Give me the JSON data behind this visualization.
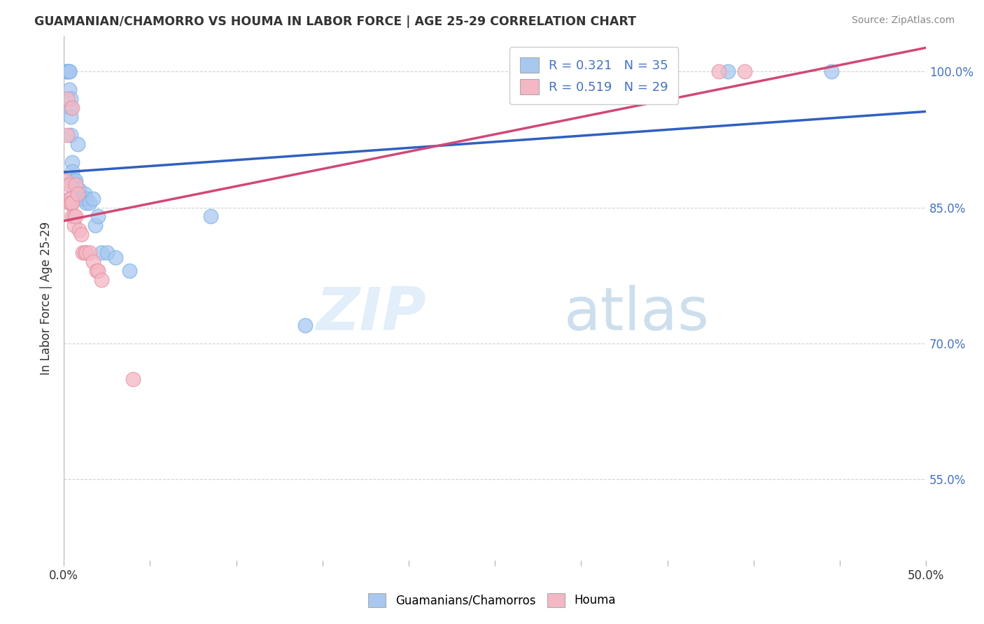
{
  "title": "GUAMANIAN/CHAMORRO VS HOUMA IN LABOR FORCE | AGE 25-29 CORRELATION CHART",
  "source": "Source: ZipAtlas.com",
  "ylabel": "In Labor Force | Age 25-29",
  "xlim": [
    0.0,
    0.5
  ],
  "ylim": [
    0.46,
    1.04
  ],
  "xtick_positions": [
    0.0,
    0.05,
    0.1,
    0.15,
    0.2,
    0.25,
    0.3,
    0.35,
    0.4,
    0.45,
    0.5
  ],
  "xtick_labels_show": {
    "0.0": "0.0%",
    "0.5": "50.0%"
  },
  "yticks": [
    0.55,
    0.7,
    0.85,
    1.0
  ],
  "ytick_labels": [
    "55.0%",
    "70.0%",
    "85.0%",
    "100.0%"
  ],
  "r_blue": 0.321,
  "n_blue": 35,
  "r_pink": 0.519,
  "n_pink": 29,
  "blue_color": "#A8C8F0",
  "blue_edge_color": "#7EB6E8",
  "pink_color": "#F4B8C4",
  "pink_edge_color": "#E896A8",
  "blue_line_color": "#3060C0",
  "pink_line_color": "#D04878",
  "legend_blue_label": "R = 0.321   N = 35",
  "legend_pink_label": "R = 0.519   N = 29",
  "bottom_legend_blue": "Guamanians/Chamorros",
  "bottom_legend_pink": "Houma",
  "blue_x": [
    0.001,
    0.002,
    0.002,
    0.003,
    0.003,
    0.003,
    0.004,
    0.004,
    0.004,
    0.004,
    0.005,
    0.005,
    0.005,
    0.006,
    0.006,
    0.007,
    0.008,
    0.009,
    0.01,
    0.011,
    0.012,
    0.013,
    0.013,
    0.015,
    0.017,
    0.018,
    0.02,
    0.022,
    0.025,
    0.03,
    0.038,
    0.085,
    0.14,
    0.385,
    0.445
  ],
  "blue_y": [
    1.0,
    1.0,
    1.0,
    1.0,
    1.0,
    0.98,
    0.97,
    0.96,
    0.95,
    0.93,
    0.9,
    0.89,
    0.88,
    0.88,
    0.87,
    0.88,
    0.92,
    0.87,
    0.86,
    0.86,
    0.865,
    0.86,
    0.855,
    0.855,
    0.86,
    0.83,
    0.84,
    0.8,
    0.8,
    0.795,
    0.78,
    0.84,
    0.72,
    1.0,
    1.0
  ],
  "pink_x": [
    0.001,
    0.002,
    0.002,
    0.003,
    0.003,
    0.003,
    0.004,
    0.004,
    0.005,
    0.005,
    0.005,
    0.006,
    0.006,
    0.007,
    0.007,
    0.008,
    0.009,
    0.01,
    0.011,
    0.012,
    0.013,
    0.015,
    0.017,
    0.019,
    0.02,
    0.022,
    0.04,
    0.38,
    0.395
  ],
  "pink_y": [
    0.88,
    0.93,
    0.97,
    0.875,
    0.86,
    0.855,
    0.86,
    0.855,
    0.855,
    0.84,
    0.96,
    0.84,
    0.83,
    0.875,
    0.84,
    0.865,
    0.825,
    0.82,
    0.8,
    0.8,
    0.8,
    0.8,
    0.79,
    0.78,
    0.78,
    0.77,
    0.66,
    1.0,
    1.0
  ],
  "watermark_zip": "ZIP",
  "watermark_atlas": "atlas",
  "background_color": "#ffffff",
  "grid_color": "#cccccc"
}
